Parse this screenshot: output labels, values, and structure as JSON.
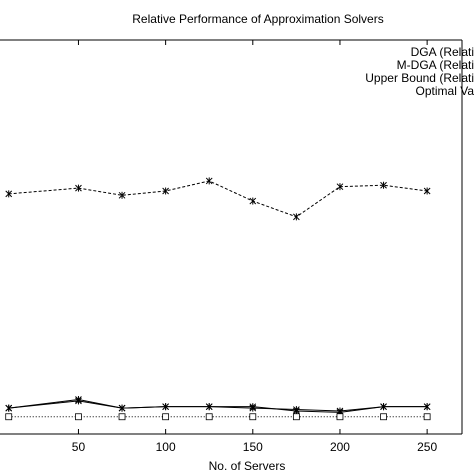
{
  "chart_data": {
    "type": "line",
    "title": "Relative Performance of Approximation Solvers",
    "xlabel": "No. of Servers",
    "ylabel": "",
    "xlim": [
      5,
      270
    ],
    "ylim": [
      0.88,
      3.62
    ],
    "xticks": [
      50,
      100,
      150,
      200,
      250
    ],
    "xtick_labels": [
      "50",
      "100",
      "150",
      "200",
      "250"
    ],
    "x": [
      10,
      50,
      75,
      100,
      125,
      150,
      175,
      200,
      225,
      250
    ],
    "grid": false,
    "legend_position": "top-right",
    "series": [
      {
        "name": "DGA (Relati",
        "color": "#000000",
        "line_style": "solid",
        "marker": "x",
        "values": [
          1.06,
          1.12,
          1.06,
          1.07,
          1.07,
          1.07,
          1.04,
          1.03,
          1.07,
          1.07
        ]
      },
      {
        "name": "M-DGA (Relati",
        "color": "#000000",
        "line_style": "solid",
        "marker": "x",
        "values": [
          1.06,
          1.11,
          1.06,
          1.07,
          1.07,
          1.06,
          1.05,
          1.04,
          1.07,
          1.07
        ]
      },
      {
        "name": "Upper Bound (Relati",
        "color": "#000000",
        "line_style": "dashed",
        "marker": "x",
        "values": [
          2.55,
          2.59,
          2.54,
          2.57,
          2.64,
          2.5,
          2.39,
          2.6,
          2.61,
          2.57
        ]
      },
      {
        "name": "Optimal Va",
        "color": "#000000",
        "line_style": "dotted",
        "marker": "square",
        "values": [
          1.0,
          1.0,
          1.0,
          1.0,
          1.0,
          1.0,
          1.0,
          1.0,
          1.0,
          1.0
        ]
      }
    ]
  }
}
